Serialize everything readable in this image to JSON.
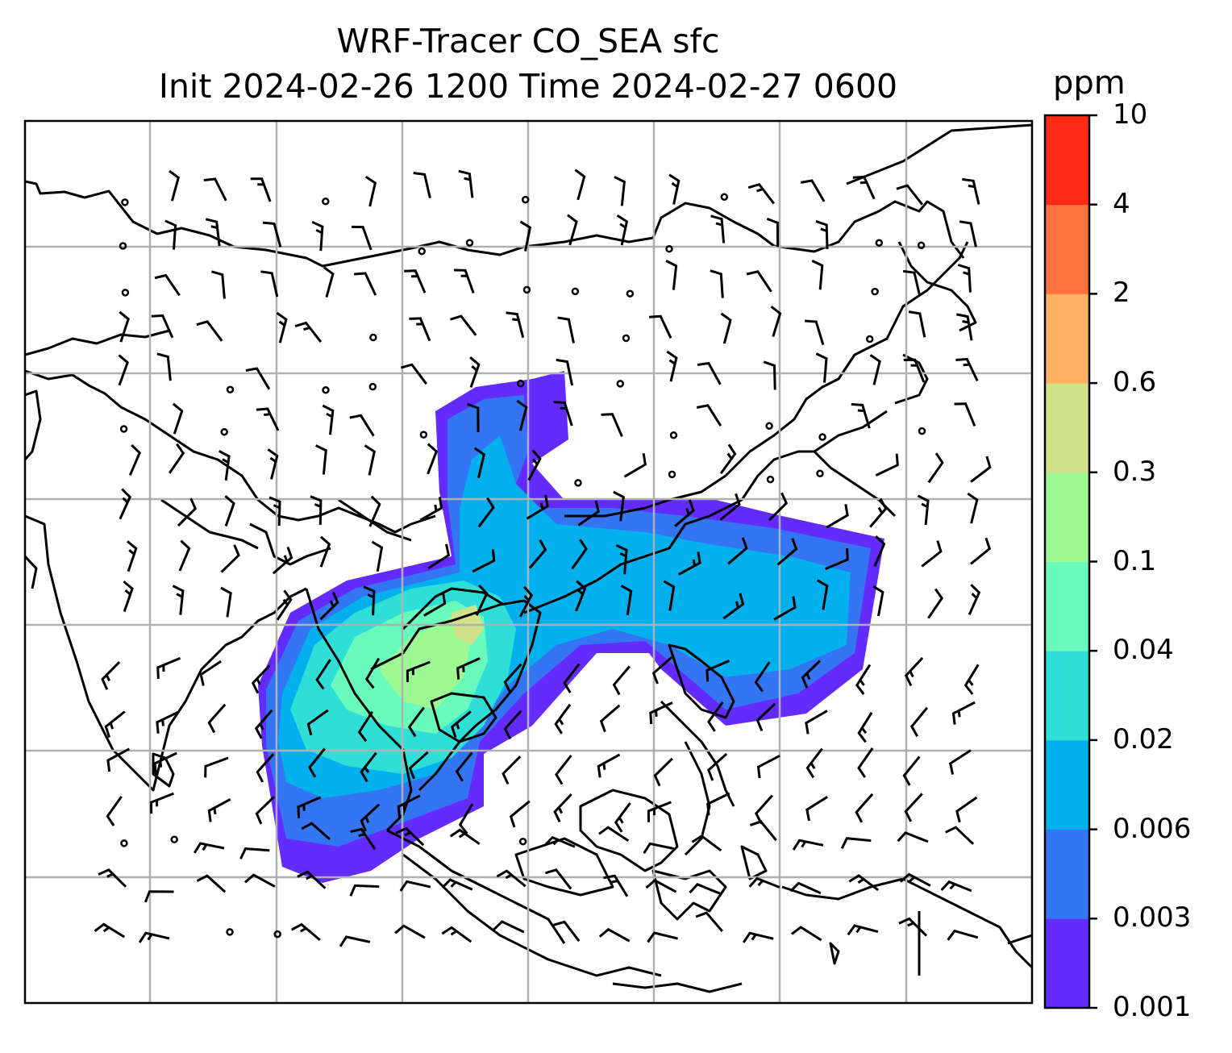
{
  "title": {
    "line1": "WRF-Tracer CO_SEA sfc",
    "line2": "Init 2024-02-26 1200 Time 2024-02-27 0600"
  },
  "map": {
    "variable": "CO_SEA tracer concentration at surface",
    "overlay": "wind barbs",
    "gridlines": true,
    "coastline_color": "#000000",
    "grid_color": "#b0b0b0"
  },
  "colorbar": {
    "unit": "ppm",
    "levels": [
      "0.001",
      "0.003",
      "0.006",
      "0.02",
      "0.04",
      "0.1",
      "0.3",
      "0.6",
      "2",
      "4",
      "10"
    ],
    "colors": [
      "#642bff",
      "#3475f3",
      "#02b0ed",
      "#2fdfd7",
      "#68fbbb",
      "#9dfa93",
      "#d0e189",
      "#ffb061",
      "#ff733e",
      "#ff2a16"
    ]
  }
}
